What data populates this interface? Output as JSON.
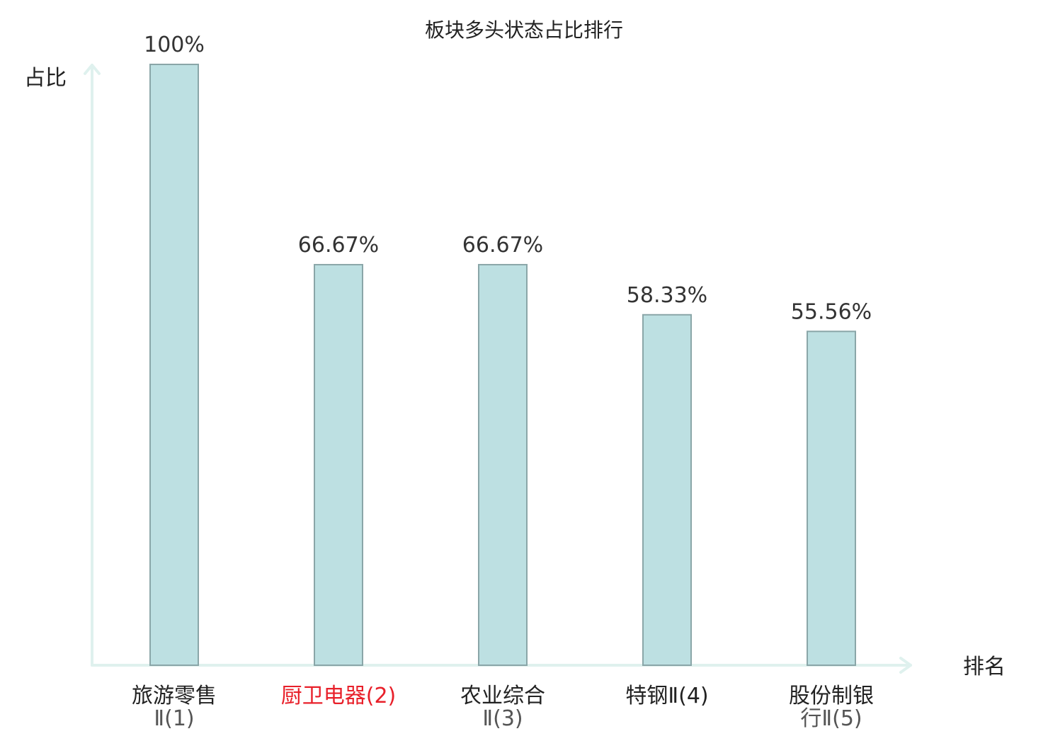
{
  "chart_data": {
    "type": "bar",
    "title": "板块多头状态占比排行",
    "ylabel": "占比",
    "xlabel": "排名",
    "ylim": [
      0,
      100
    ],
    "highlight_color": "#e8202a",
    "bar_color": "#bde0e2",
    "categories": [
      {
        "line1": "旅游零售",
        "line2": "Ⅱ(1)",
        "highlight": false
      },
      {
        "line1": "厨卫电器(2)",
        "line2": "",
        "highlight": true
      },
      {
        "line1": "农业综合",
        "line2": "Ⅱ(3)",
        "highlight": false
      },
      {
        "line1": "特钢Ⅱ(4)",
        "line2": "",
        "highlight": false
      },
      {
        "line1": "股份制银",
        "line2": "行Ⅱ(5)",
        "highlight": false
      }
    ],
    "values": [
      100,
      66.67,
      66.67,
      58.33,
      55.56
    ],
    "value_labels": [
      "100%",
      "66.67%",
      "66.67%",
      "58.33%",
      "55.56%"
    ]
  }
}
